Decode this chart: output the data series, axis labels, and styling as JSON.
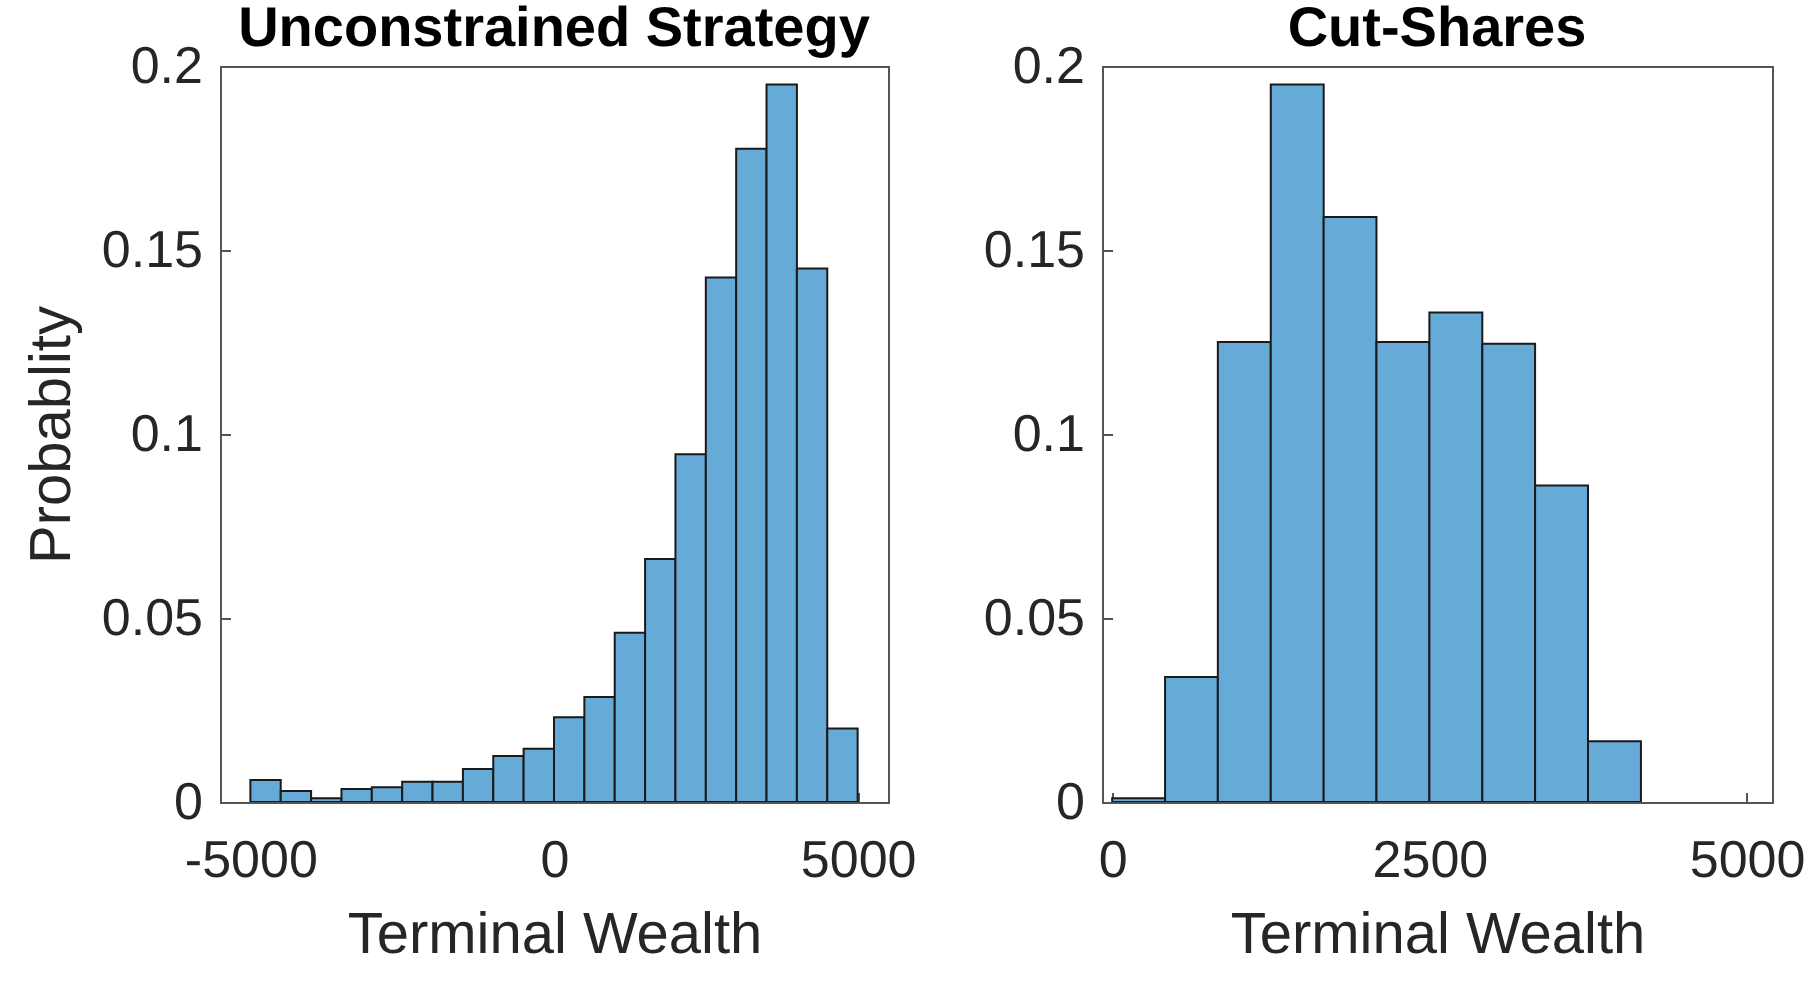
{
  "chart_data": [
    {
      "type": "histogram",
      "title": "Unconstrained Strategy",
      "xlabel": "Terminal Wealth",
      "ylabel": "Probablity",
      "bins": [
        -5000,
        -4500,
        -4000,
        -3500,
        -3000,
        -2500,
        -2000,
        -1500,
        -1000,
        -500,
        0,
        500,
        1000,
        1500,
        2000,
        2500,
        3000,
        3500,
        4000,
        4500,
        5000
      ],
      "values": [
        0.006,
        0.003,
        0.001,
        0.0035,
        0.004,
        0.0055,
        0.0055,
        0.009,
        0.0125,
        0.0145,
        0.023,
        0.0285,
        0.046,
        0.066,
        0.0945,
        0.1425,
        0.1775,
        0.195,
        0.145,
        0.02
      ],
      "color": "#66aad7",
      "xlim": [
        -5500,
        5500
      ],
      "xticks": [
        -5000,
        0,
        5000
      ],
      "ylim": [
        0,
        0.2
      ],
      "yticks": [
        0,
        0.05,
        0.1,
        0.15,
        0.2
      ]
    },
    {
      "type": "histogram",
      "title": "Cut-Shares",
      "xlabel": "Terminal Wealth",
      "bins": [
        0,
        417,
        833,
        1250,
        1667,
        2083,
        2500,
        2917,
        3333,
        3750,
        4167
      ],
      "values": [
        0.001,
        0.034,
        0.125,
        0.195,
        0.159,
        0.125,
        0.133,
        0.1245,
        0.086,
        0.0165
      ],
      "color": "#66aad7",
      "xlim": [
        -80,
        5200
      ],
      "xticks": [
        0,
        2500,
        5000
      ],
      "ylim": [
        0,
        0.2
      ],
      "yticks": [
        0,
        0.05,
        0.1,
        0.15,
        0.2
      ]
    }
  ]
}
